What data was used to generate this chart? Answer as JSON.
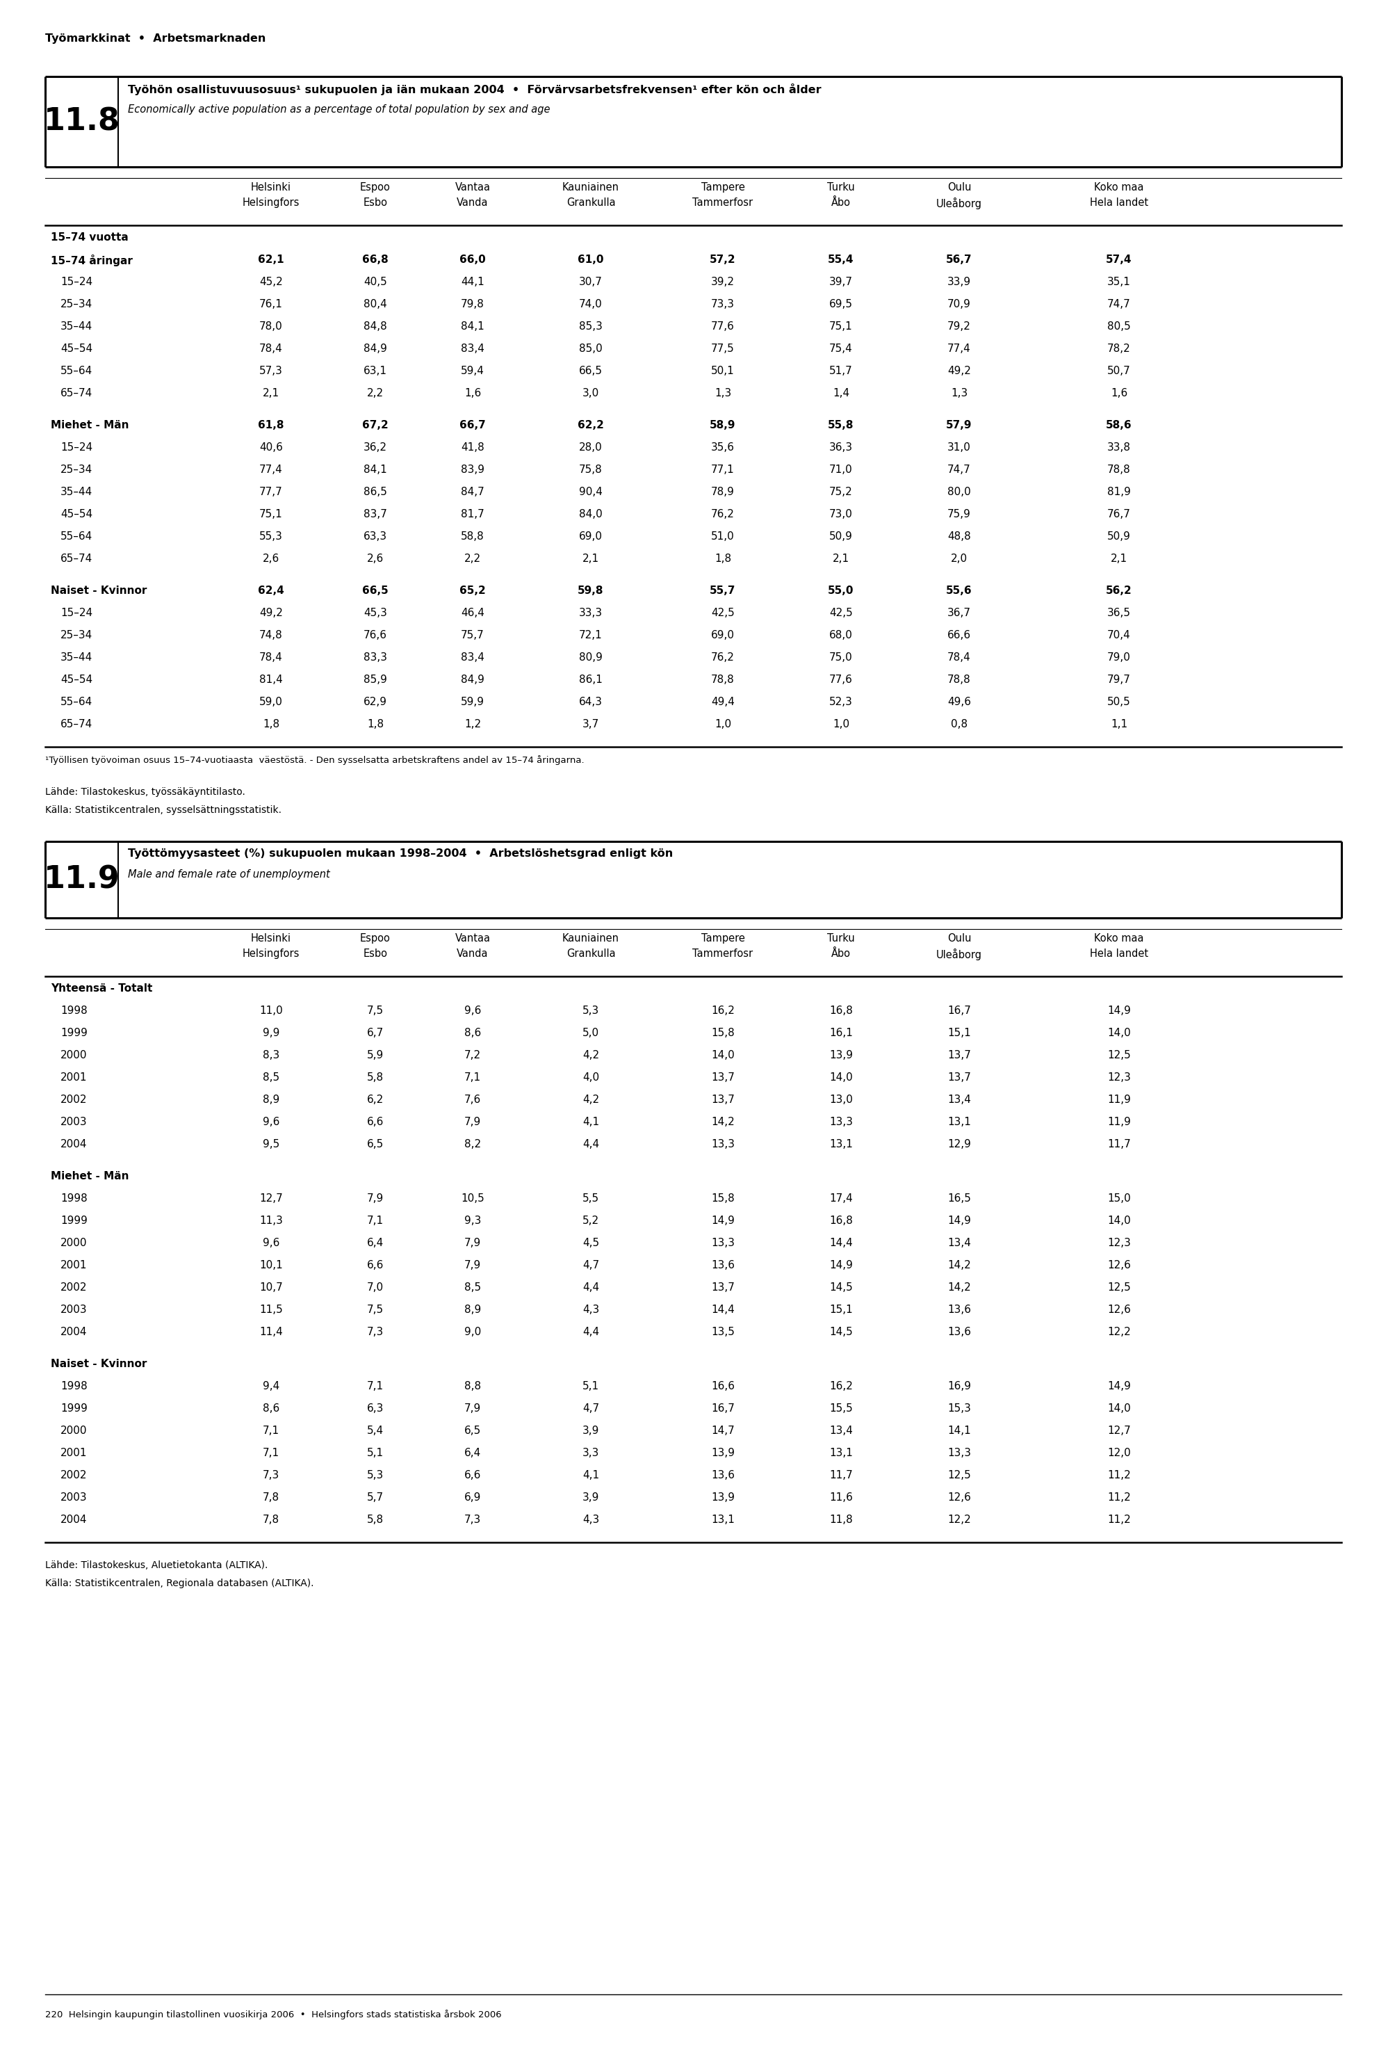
{
  "page_header": "Työmarkkinat  •  Arbetsmarknaden",
  "table1": {
    "number": "11.8",
    "title_fi": "Työhön osallistuvuusosuus¹ sukupuolen ja iän mukaan 2004",
    "title_sv": "Förvärvsarbetsfrekvensen¹ efter kön och ålder",
    "title_en": "Economically active population as a percentage of total population by sex and age",
    "sections": [
      {
        "section_header": "15–74 vuotta",
        "rows": [
          {
            "label": "15–74 åringar",
            "bold": true,
            "values": [
              62.1,
              66.8,
              66.0,
              61.0,
              57.2,
              55.4,
              56.7,
              57.4
            ]
          },
          {
            "label": "15–24",
            "bold": false,
            "values": [
              45.2,
              40.5,
              44.1,
              30.7,
              39.2,
              39.7,
              33.9,
              35.1
            ]
          },
          {
            "label": "25–34",
            "bold": false,
            "values": [
              76.1,
              80.4,
              79.8,
              74.0,
              73.3,
              69.5,
              70.9,
              74.7
            ]
          },
          {
            "label": "35–44",
            "bold": false,
            "values": [
              78.0,
              84.8,
              84.1,
              85.3,
              77.6,
              75.1,
              79.2,
              80.5
            ]
          },
          {
            "label": "45–54",
            "bold": false,
            "values": [
              78.4,
              84.9,
              83.4,
              85.0,
              77.5,
              75.4,
              77.4,
              78.2
            ]
          },
          {
            "label": "55–64",
            "bold": false,
            "values": [
              57.3,
              63.1,
              59.4,
              66.5,
              50.1,
              51.7,
              49.2,
              50.7
            ]
          },
          {
            "label": "65–74",
            "bold": false,
            "values": [
              2.1,
              2.2,
              1.6,
              3.0,
              1.3,
              1.4,
              1.3,
              1.6
            ]
          }
        ]
      },
      {
        "section_header": "Miehet - Män",
        "rows": [
          {
            "label": "Miehet - Män",
            "bold": true,
            "values": [
              61.8,
              67.2,
              66.7,
              62.2,
              58.9,
              55.8,
              57.9,
              58.6
            ]
          },
          {
            "label": "15–24",
            "bold": false,
            "values": [
              40.6,
              36.2,
              41.8,
              28.0,
              35.6,
              36.3,
              31.0,
              33.8
            ]
          },
          {
            "label": "25–34",
            "bold": false,
            "values": [
              77.4,
              84.1,
              83.9,
              75.8,
              77.1,
              71.0,
              74.7,
              78.8
            ]
          },
          {
            "label": "35–44",
            "bold": false,
            "values": [
              77.7,
              86.5,
              84.7,
              90.4,
              78.9,
              75.2,
              80.0,
              81.9
            ]
          },
          {
            "label": "45–54",
            "bold": false,
            "values": [
              75.1,
              83.7,
              81.7,
              84.0,
              76.2,
              73.0,
              75.9,
              76.7
            ]
          },
          {
            "label": "55–64",
            "bold": false,
            "values": [
              55.3,
              63.3,
              58.8,
              69.0,
              51.0,
              50.9,
              48.8,
              50.9
            ]
          },
          {
            "label": "65–74",
            "bold": false,
            "values": [
              2.6,
              2.6,
              2.2,
              2.1,
              1.8,
              2.1,
              2.0,
              2.1
            ]
          }
        ]
      },
      {
        "section_header": "Naiset - Kvinnor",
        "rows": [
          {
            "label": "Naiset - Kvinnor",
            "bold": true,
            "values": [
              62.4,
              66.5,
              65.2,
              59.8,
              55.7,
              55.0,
              55.6,
              56.2
            ]
          },
          {
            "label": "15–24",
            "bold": false,
            "values": [
              49.2,
              45.3,
              46.4,
              33.3,
              42.5,
              42.5,
              36.7,
              36.5
            ]
          },
          {
            "label": "25–34",
            "bold": false,
            "values": [
              74.8,
              76.6,
              75.7,
              72.1,
              69.0,
              68.0,
              66.6,
              70.4
            ]
          },
          {
            "label": "35–44",
            "bold": false,
            "values": [
              78.4,
              83.3,
              83.4,
              80.9,
              76.2,
              75.0,
              78.4,
              79.0
            ]
          },
          {
            "label": "45–54",
            "bold": false,
            "values": [
              81.4,
              85.9,
              84.9,
              86.1,
              78.8,
              77.6,
              78.8,
              79.7
            ]
          },
          {
            "label": "55–64",
            "bold": false,
            "values": [
              59.0,
              62.9,
              59.9,
              64.3,
              49.4,
              52.3,
              49.6,
              50.5
            ]
          },
          {
            "label": "65–74",
            "bold": false,
            "values": [
              1.8,
              1.8,
              1.2,
              3.7,
              1.0,
              1.0,
              0.8,
              1.1
            ]
          }
        ]
      }
    ],
    "footnote1": "¹Työllisen työvoiman osuus 15–74-vuotiaasta  väestöstä. - Den sysselsatta arbetskraftens andel av 15–74 åringarna.",
    "source_fi": "Lähde: Tilastokeskus, työssäkäyntitilasto.",
    "source_sv": "Källa: Statistikcentralen, sysselsättningsstatistik."
  },
  "table2": {
    "number": "11.9",
    "title_fi": "Työttömyysasteet (%) sukupuolen mukaan 1998–2004",
    "title_sv": "Arbetslöshetsgrad enligt kön",
    "title_en": "Male and female rate of unemployment",
    "sections": [
      {
        "section_header": "Yhteensä - Totalt",
        "rows": [
          {
            "label": "1998",
            "bold": false,
            "values": [
              11.0,
              7.5,
              9.6,
              5.3,
              16.2,
              16.8,
              16.7,
              14.9
            ]
          },
          {
            "label": "1999",
            "bold": false,
            "values": [
              9.9,
              6.7,
              8.6,
              5.0,
              15.8,
              16.1,
              15.1,
              14.0
            ]
          },
          {
            "label": "2000",
            "bold": false,
            "values": [
              8.3,
              5.9,
              7.2,
              4.2,
              14.0,
              13.9,
              13.7,
              12.5
            ]
          },
          {
            "label": "2001",
            "bold": false,
            "values": [
              8.5,
              5.8,
              7.1,
              4.0,
              13.7,
              14.0,
              13.7,
              12.3
            ]
          },
          {
            "label": "2002",
            "bold": false,
            "values": [
              8.9,
              6.2,
              7.6,
              4.2,
              13.7,
              13.0,
              13.4,
              11.9
            ]
          },
          {
            "label": "2003",
            "bold": false,
            "values": [
              9.6,
              6.6,
              7.9,
              4.1,
              14.2,
              13.3,
              13.1,
              11.9
            ]
          },
          {
            "label": "2004",
            "bold": false,
            "values": [
              9.5,
              6.5,
              8.2,
              4.4,
              13.3,
              13.1,
              12.9,
              11.7
            ]
          }
        ]
      },
      {
        "section_header": "Miehet - Män",
        "rows": [
          {
            "label": "1998",
            "bold": false,
            "values": [
              12.7,
              7.9,
              10.5,
              5.5,
              15.8,
              17.4,
              16.5,
              15.0
            ]
          },
          {
            "label": "1999",
            "bold": false,
            "values": [
              11.3,
              7.1,
              9.3,
              5.2,
              14.9,
              16.8,
              14.9,
              14.0
            ]
          },
          {
            "label": "2000",
            "bold": false,
            "values": [
              9.6,
              6.4,
              7.9,
              4.5,
              13.3,
              14.4,
              13.4,
              12.3
            ]
          },
          {
            "label": "2001",
            "bold": false,
            "values": [
              10.1,
              6.6,
              7.9,
              4.7,
              13.6,
              14.9,
              14.2,
              12.6
            ]
          },
          {
            "label": "2002",
            "bold": false,
            "values": [
              10.7,
              7.0,
              8.5,
              4.4,
              13.7,
              14.5,
              14.2,
              12.5
            ]
          },
          {
            "label": "2003",
            "bold": false,
            "values": [
              11.5,
              7.5,
              8.9,
              4.3,
              14.4,
              15.1,
              13.6,
              12.6
            ]
          },
          {
            "label": "2004",
            "bold": false,
            "values": [
              11.4,
              7.3,
              9.0,
              4.4,
              13.5,
              14.5,
              13.6,
              12.2
            ]
          }
        ]
      },
      {
        "section_header": "Naiset - Kvinnor",
        "rows": [
          {
            "label": "1998",
            "bold": false,
            "values": [
              9.4,
              7.1,
              8.8,
              5.1,
              16.6,
              16.2,
              16.9,
              14.9
            ]
          },
          {
            "label": "1999",
            "bold": false,
            "values": [
              8.6,
              6.3,
              7.9,
              4.7,
              16.7,
              15.5,
              15.3,
              14.0
            ]
          },
          {
            "label": "2000",
            "bold": false,
            "values": [
              7.1,
              5.4,
              6.5,
              3.9,
              14.7,
              13.4,
              14.1,
              12.7
            ]
          },
          {
            "label": "2001",
            "bold": false,
            "values": [
              7.1,
              5.1,
              6.4,
              3.3,
              13.9,
              13.1,
              13.3,
              12.0
            ]
          },
          {
            "label": "2002",
            "bold": false,
            "values": [
              7.3,
              5.3,
              6.6,
              4.1,
              13.6,
              11.7,
              12.5,
              11.2
            ]
          },
          {
            "label": "2003",
            "bold": false,
            "values": [
              7.8,
              5.7,
              6.9,
              3.9,
              13.9,
              11.6,
              12.6,
              11.2
            ]
          },
          {
            "label": "2004",
            "bold": false,
            "values": [
              7.8,
              5.8,
              7.3,
              4.3,
              13.1,
              11.8,
              12.2,
              11.2
            ]
          }
        ]
      }
    ],
    "source_fi": "Lähde: Tilastokeskus, Aluetietokanta (ALTIKA).",
    "source_sv": "Källa: Statistikcentralen, Regionala databasen (ALTIKA)."
  },
  "col_labels": [
    "Helsinki\nHelsingfors",
    "Espoo\nEsbo",
    "Vantaa\nVanda",
    "Kauniainen\nGrankulla",
    "Tampere\nTammerfosr",
    "Turku\nÅbo",
    "Oulu\nUleåborg",
    "Koko maa\nHela landet"
  ],
  "page_footer": "220  Helsingin kaupungin tilastollinen vuosikirja 2006  •  Helsingfors stads statistiska årsbok 2006",
  "bg_color": "#ffffff",
  "text_color": "#000000"
}
